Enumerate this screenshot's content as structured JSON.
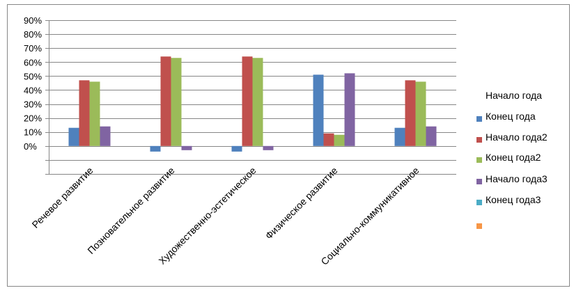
{
  "chart_data": {
    "type": "bar",
    "title": "",
    "xlabel": "",
    "ylabel": "",
    "ylim": [
      -0.2,
      0.9
    ],
    "y_ticks": [
      {
        "value": 0.0,
        "label": "0%"
      },
      {
        "value": 0.1,
        "label": "10%"
      },
      {
        "value": 0.2,
        "label": "20%"
      },
      {
        "value": 0.3,
        "label": "30%"
      },
      {
        "value": 0.4,
        "label": "40%"
      },
      {
        "value": 0.5,
        "label": "50%"
      },
      {
        "value": 0.6,
        "label": "60%"
      },
      {
        "value": 0.7,
        "label": "70%"
      },
      {
        "value": 0.8,
        "label": "80%"
      },
      {
        "value": 0.9,
        "label": "90%"
      }
    ],
    "grid": true,
    "legend_position": "right",
    "categories": [
      "Речевое развитие",
      "Позновательное развитие",
      "Художественно-эстетическое",
      "Физическое развитие",
      "Социально-коммуникативное"
    ],
    "legend_header": "Начало года",
    "series": [
      {
        "name": "Конец года",
        "color": "#4F81BD",
        "values": [
          0.13,
          -0.04,
          -0.04,
          0.51,
          0.13
        ]
      },
      {
        "name": "Начало года2",
        "color": "#C0504D",
        "values": [
          0.47,
          0.64,
          0.64,
          0.09,
          0.47
        ]
      },
      {
        "name": "Конец года2",
        "color": "#9BBB59",
        "values": [
          0.46,
          0.63,
          0.63,
          0.08,
          0.46
        ]
      },
      {
        "name": "Начало года3",
        "color": "#8064A2",
        "values": [
          0.14,
          -0.03,
          -0.03,
          0.52,
          0.14
        ]
      },
      {
        "name": "Конец года3",
        "color": "#4BACC6",
        "values": [
          null,
          null,
          null,
          null,
          null
        ]
      },
      {
        "name": "",
        "color": "#F79646",
        "values": [
          null,
          null,
          null,
          null,
          null
        ]
      }
    ]
  }
}
